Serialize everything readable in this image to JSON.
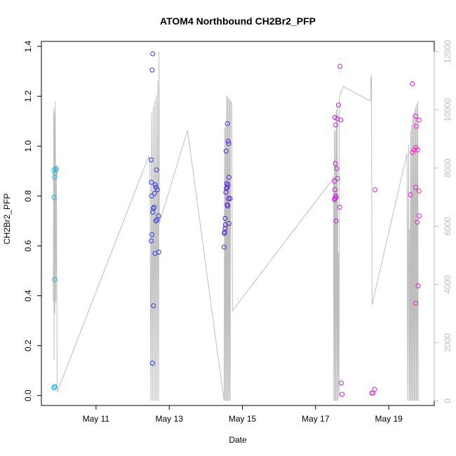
{
  "chart_data": {
    "type": "scatter",
    "title": "ATOM4 Northbound CH2Br2_PFP",
    "xlabel": "Date",
    "ylabel": "CH2Br2_PFP",
    "xlim": [
      "2016-05-09T12:10",
      "2016-05-20T05:50"
    ],
    "ylim": [
      -0.04,
      1.42
    ],
    "y2lim": [
      -160,
      12350
    ],
    "x_ticks": [
      {
        "at": "2016-05-11",
        "label": "May 11"
      },
      {
        "at": "2016-05-13",
        "label": "May 13"
      },
      {
        "at": "2016-05-15",
        "label": "May 15"
      },
      {
        "at": "2016-05-17",
        "label": "May 17"
      },
      {
        "at": "2016-05-19",
        "label": "May 19"
      }
    ],
    "y_ticks": [
      "0.0",
      "0.2",
      "0.4",
      "0.6",
      "0.8",
      "1.0",
      "1.2",
      "1.4"
    ],
    "y2_ticks": [
      "0",
      "2000",
      "4000",
      "6000",
      "8000",
      "10000",
      "12000"
    ],
    "colors": {
      "axis": "#000000",
      "secondary_axis": "#bebebe",
      "altitude_line": "#bebebe"
    },
    "color_gradient": [
      "#1fb2e6",
      "#1f4df0",
      "#3318e6",
      "#7a1fe0",
      "#c71fd6",
      "#f21fcf"
    ],
    "grid": false,
    "legend": "none",
    "series": [
      {
        "marker": "open-circle",
        "axis": "left",
        "points": [
          [
            "2016-05-09T20:20",
            0.03
          ],
          [
            "2016-05-09T20:40",
            0.035
          ],
          [
            "2016-05-09T21:00",
            0.035
          ],
          [
            "2016-05-09T20:30",
            0.795
          ],
          [
            "2016-05-09T20:55",
            0.875
          ],
          [
            "2016-05-09T21:10",
            0.89
          ],
          [
            "2016-05-09T21:40",
            0.905
          ],
          [
            "2016-05-09T21:50",
            0.91
          ],
          [
            "2016-05-09T20:20",
            0.905
          ],
          [
            "2016-05-09T20:50",
            0.465
          ],
          [
            "2016-05-12T12:10",
            0.945
          ],
          [
            "2016-05-12T12:20",
            0.855
          ],
          [
            "2016-05-12T12:30",
            0.8
          ],
          [
            "2016-05-12T12:10",
            0.62
          ],
          [
            "2016-05-12T12:40",
            0.645
          ],
          [
            "2016-05-12T13:10",
            0.735
          ],
          [
            "2016-05-12T13:30",
            0.75
          ],
          [
            "2016-05-12T14:00",
            0.755
          ],
          [
            "2016-05-12T14:20",
            0.81
          ],
          [
            "2016-05-12T14:50",
            0.845
          ],
          [
            "2016-05-12T15:20",
            0.835
          ],
          [
            "2016-05-12T16:10",
            0.825
          ],
          [
            "2016-05-12T15:40",
            0.905
          ],
          [
            "2016-05-12T15:10",
            0.7
          ],
          [
            "2016-05-12T16:00",
            0.705
          ],
          [
            "2016-05-12T17:00",
            0.72
          ],
          [
            "2016-05-12T14:40",
            0.57
          ],
          [
            "2016-05-12T17:10",
            0.575
          ],
          [
            "2016-05-12T13:40",
            0.36
          ],
          [
            "2016-05-12T13:00",
            0.13
          ],
          [
            "2016-05-12T12:50",
            1.305
          ],
          [
            "2016-05-12T13:10",
            1.37
          ],
          [
            "2016-05-14T12:00",
            0.595
          ],
          [
            "2016-05-14T12:10",
            0.65
          ],
          [
            "2016-05-14T12:20",
            0.655
          ],
          [
            "2016-05-14T12:40",
            0.67
          ],
          [
            "2016-05-14T12:50",
            0.685
          ],
          [
            "2016-05-14T12:40",
            0.71
          ],
          [
            "2016-05-14T13:10",
            0.815
          ],
          [
            "2016-05-14T13:30",
            0.83
          ],
          [
            "2016-05-14T14:00",
            0.835
          ],
          [
            "2016-05-14T13:40",
            0.85
          ],
          [
            "2016-05-14T14:30",
            0.845
          ],
          [
            "2016-05-14T15:10",
            0.875
          ],
          [
            "2016-05-14T14:50",
            0.79
          ],
          [
            "2016-05-14T15:50",
            0.79
          ],
          [
            "2016-05-14T14:00",
            0.765
          ],
          [
            "2016-05-14T14:20",
            0.76
          ],
          [
            "2016-05-14T15:10",
            0.69
          ],
          [
            "2016-05-14T13:20",
            0.98
          ],
          [
            "2016-05-14T14:40",
            1.02
          ],
          [
            "2016-05-14T15:00",
            1.01
          ],
          [
            "2016-05-14T14:10",
            1.09
          ],
          [
            "2016-05-17T12:20",
            0.785
          ],
          [
            "2016-05-17T12:40",
            0.79
          ],
          [
            "2016-05-17T13:00",
            0.8
          ],
          [
            "2016-05-17T13:30",
            0.795
          ],
          [
            "2016-05-17T12:30",
            0.86
          ],
          [
            "2016-05-17T13:00",
            0.93
          ],
          [
            "2016-05-17T13:50",
            0.91
          ],
          [
            "2016-05-17T14:20",
            0.87
          ],
          [
            "2016-05-17T12:40",
            0.825
          ],
          [
            "2016-05-17T13:30",
            0.7
          ],
          [
            "2016-05-17T15:50",
            0.755
          ],
          [
            "2016-05-17T12:40",
            1.115
          ],
          [
            "2016-05-17T13:10",
            1.085
          ],
          [
            "2016-05-17T14:10",
            1.11
          ],
          [
            "2016-05-17T15:00",
            1.165
          ],
          [
            "2016-05-17T16:30",
            1.105
          ],
          [
            "2016-05-17T16:00",
            1.32
          ],
          [
            "2016-05-17T16:50",
            0.05
          ],
          [
            "2016-05-17T17:20",
            0.005
          ],
          [
            "2016-05-18T12:50",
            0.01
          ],
          [
            "2016-05-18T13:40",
            0.01
          ],
          [
            "2016-05-18T14:40",
            0.025
          ],
          [
            "2016-05-18T15:00",
            0.825
          ],
          [
            "2016-05-19T15:30",
            1.25
          ],
          [
            "2016-05-19T17:40",
            1.12
          ],
          [
            "2016-05-19T19:50",
            1.105
          ],
          [
            "2016-05-19T18:00",
            1.08
          ],
          [
            "2016-05-19T15:30",
            0.975
          ],
          [
            "2016-05-19T16:40",
            0.985
          ],
          [
            "2016-05-19T17:50",
            0.995
          ],
          [
            "2016-05-19T18:50",
            0.985
          ],
          [
            "2016-05-19T14:10",
            0.805
          ],
          [
            "2016-05-19T17:40",
            0.835
          ],
          [
            "2016-05-19T19:50",
            0.82
          ],
          [
            "2016-05-19T20:00",
            0.72
          ],
          [
            "2016-05-19T18:40",
            0.695
          ],
          [
            "2016-05-19T19:10",
            0.44
          ],
          [
            "2016-05-19T17:40",
            0.37
          ]
        ]
      },
      {
        "marker": "line",
        "axis": "right",
        "points": [
          [
            "2016-05-09T20:00",
            3400
          ],
          [
            "2016-05-09T20:15",
            10050
          ],
          [
            "2016-05-09T20:30",
            1400
          ],
          [
            "2016-05-09T20:45",
            9900
          ],
          [
            "2016-05-09T21:00",
            3000
          ],
          [
            "2016-05-09T21:20",
            10300
          ],
          [
            "2016-05-09T21:40",
            3400
          ],
          [
            "2016-05-09T22:00",
            8100
          ],
          [
            "2016-05-09T22:30",
            300
          ],
          [
            "2016-05-12T10:30",
            8400
          ],
          [
            "2016-05-12T11:20",
            8300
          ],
          [
            "2016-05-12T12:00",
            0
          ],
          [
            "2016-05-12T12:30",
            9900
          ],
          [
            "2016-05-12T13:00",
            0
          ],
          [
            "2016-05-12T13:30",
            10100
          ],
          [
            "2016-05-12T14:00",
            0
          ],
          [
            "2016-05-12T14:30",
            10300
          ],
          [
            "2016-05-12T15:00",
            0
          ],
          [
            "2016-05-12T15:30",
            10500
          ],
          [
            "2016-05-12T16:00",
            0
          ],
          [
            "2016-05-12T16:30",
            11000
          ],
          [
            "2016-05-12T17:00",
            0
          ],
          [
            "2016-05-12T17:20",
            12000
          ],
          [
            "2016-05-12T17:30",
            6100
          ],
          [
            "2016-05-13T12:00",
            9300
          ],
          [
            "2016-05-14T12:00",
            0
          ],
          [
            "2016-05-14T12:20",
            9400
          ],
          [
            "2016-05-14T12:40",
            0
          ],
          [
            "2016-05-14T13:00",
            9400
          ],
          [
            "2016-05-14T13:20",
            0
          ],
          [
            "2016-05-14T13:40",
            10500
          ],
          [
            "2016-05-14T14:00",
            0
          ],
          [
            "2016-05-14T14:20",
            10450
          ],
          [
            "2016-05-14T14:40",
            0
          ],
          [
            "2016-05-14T15:00",
            10400
          ],
          [
            "2016-05-14T15:20",
            0
          ],
          [
            "2016-05-14T15:40",
            10350
          ],
          [
            "2016-05-14T16:00",
            0
          ],
          [
            "2016-05-14T16:20",
            10300
          ],
          [
            "2016-05-14T17:00",
            10200
          ],
          [
            "2016-05-14T17:30",
            3100
          ],
          [
            "2016-05-17T11:00",
            7600
          ],
          [
            "2016-05-17T11:40",
            7700
          ],
          [
            "2016-05-17T12:00",
            0
          ],
          [
            "2016-05-17T12:20",
            9300
          ],
          [
            "2016-05-17T12:40",
            0
          ],
          [
            "2016-05-17T13:00",
            9300
          ],
          [
            "2016-05-17T13:20",
            0
          ],
          [
            "2016-05-17T13:40",
            10000
          ],
          [
            "2016-05-17T14:00",
            0
          ],
          [
            "2016-05-17T14:20",
            10200
          ],
          [
            "2016-05-17T14:40",
            0
          ],
          [
            "2016-05-17T15:00",
            5100
          ],
          [
            "2016-05-17T15:20",
            100
          ],
          [
            "2016-05-17T15:40",
            10400
          ],
          [
            "2016-05-17T16:20",
            10600
          ],
          [
            "2016-05-17T17:00",
            10600
          ],
          [
            "2016-05-17T18:00",
            10800
          ],
          [
            "2016-05-18T12:00",
            10300
          ],
          [
            "2016-05-18T12:20",
            11100
          ],
          [
            "2016-05-18T12:40",
            11200
          ],
          [
            "2016-05-18T13:00",
            3300
          ],
          [
            "2016-05-19T12:00",
            8500
          ],
          [
            "2016-05-19T12:20",
            0
          ],
          [
            "2016-05-19T13:00",
            8800
          ],
          [
            "2016-05-19T13:20",
            0
          ],
          [
            "2016-05-19T13:40",
            5900
          ],
          [
            "2016-05-19T14:00",
            0
          ],
          [
            "2016-05-19T14:20",
            9300
          ],
          [
            "2016-05-19T14:40",
            0
          ],
          [
            "2016-05-19T15:00",
            9500
          ],
          [
            "2016-05-19T15:20",
            0
          ],
          [
            "2016-05-19T15:40",
            9800
          ],
          [
            "2016-05-19T16:00",
            0
          ],
          [
            "2016-05-19T16:20",
            9900
          ],
          [
            "2016-05-19T16:40",
            0
          ],
          [
            "2016-05-19T17:00",
            10000
          ],
          [
            "2016-05-19T17:20",
            0
          ],
          [
            "2016-05-19T17:40",
            10100
          ],
          [
            "2016-05-19T18:00",
            0
          ],
          [
            "2016-05-19T18:20",
            10200
          ],
          [
            "2016-05-19T18:40",
            0
          ],
          [
            "2016-05-19T19:00",
            10300
          ],
          [
            "2016-05-19T19:20",
            0
          ]
        ]
      }
    ]
  }
}
